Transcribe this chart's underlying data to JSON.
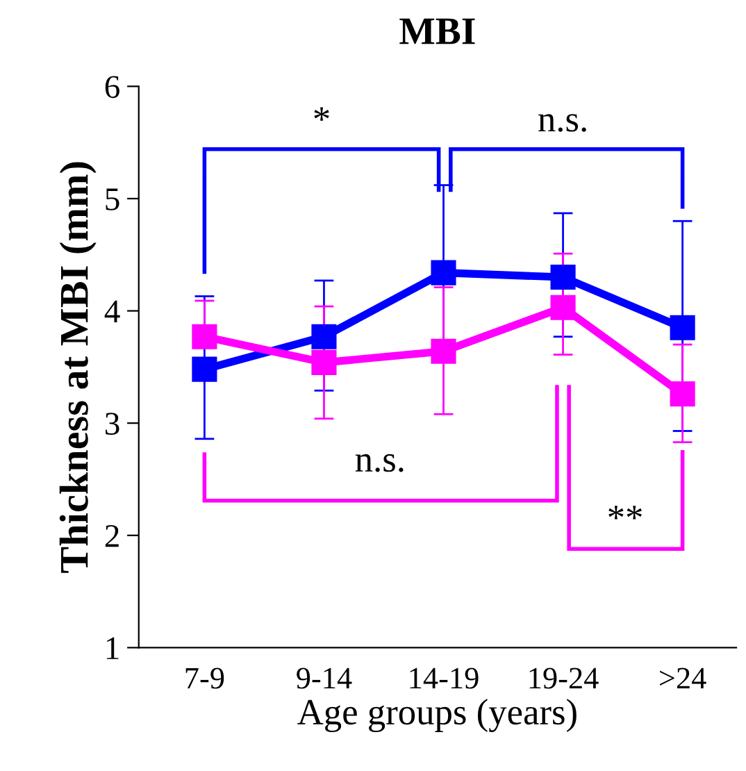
{
  "chart_data": {
    "type": "line",
    "title": "MBI",
    "xlabel": "Age groups (years)",
    "ylabel": "Thickness at MBI (mm)",
    "categories": [
      "7-9",
      "9-14",
      "14-19",
      "19-24",
      ">24"
    ],
    "series": [
      {
        "color": "#0000ff",
        "values": [
          3.48,
          3.77,
          4.34,
          4.3,
          3.85
        ],
        "errors": [
          [
            2.86,
            4.13
          ],
          [
            3.29,
            4.27
          ],
          [
            3.56,
            5.12
          ],
          [
            3.77,
            4.87
          ],
          [
            2.93,
            4.8
          ]
        ]
      },
      {
        "color": "#ff00ff",
        "values": [
          3.77,
          3.54,
          3.64,
          4.03,
          3.26
        ],
        "errors": [
          [
            3.77,
            4.09
          ],
          [
            3.04,
            4.04
          ],
          [
            3.08,
            4.21
          ],
          [
            3.61,
            4.51
          ],
          [
            2.83,
            3.7
          ]
        ]
      }
    ],
    "ylim": [
      1,
      6
    ],
    "yticks": [
      1,
      2,
      3,
      4,
      5,
      6
    ],
    "marker": "square",
    "line_style": "solid",
    "grid": false,
    "legend": false,
    "annotations": [
      "*",
      "n.s.",
      "n.s.",
      "**"
    ]
  }
}
